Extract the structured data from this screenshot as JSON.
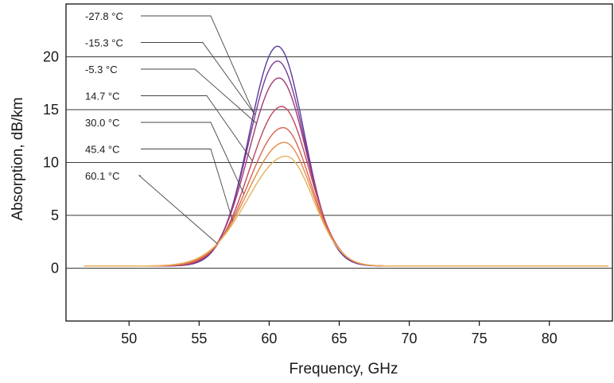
{
  "chart_data": {
    "type": "line",
    "title": "",
    "xlabel": "Frequency, GHz",
    "ylabel": "Absorption, dB/km",
    "xlim": [
      45.5,
      84.5
    ],
    "ylim": [
      -5,
      25
    ],
    "xticks": [
      50,
      55,
      60,
      65,
      70,
      75,
      80
    ],
    "yticks": [
      0,
      5,
      10,
      15,
      20
    ],
    "grid": "horizontal",
    "legend": "inline labels with leader lines, top-left",
    "series": [
      {
        "name": "-27.8 °C",
        "color": "#5a3a9c",
        "peak": 21.0,
        "peak_x": 60.6,
        "left_sigma": 2.0,
        "right_sigma": 1.9
      },
      {
        "name": "-15.3 °C",
        "color": "#7c3a94",
        "peak": 19.6,
        "peak_x": 60.6,
        "left_sigma": 2.05,
        "right_sigma": 1.95
      },
      {
        "name": "-5.3 °C",
        "color": "#a03a78",
        "peak": 18.0,
        "peak_x": 60.7,
        "left_sigma": 2.15,
        "right_sigma": 1.95
      },
      {
        "name": "14.7 °C",
        "color": "#c0455e",
        "peak": 15.3,
        "peak_x": 60.9,
        "left_sigma": 2.3,
        "right_sigma": 1.95
      },
      {
        "name": "30.0 °C",
        "color": "#d8644c",
        "peak": 13.3,
        "peak_x": 61.0,
        "left_sigma": 2.45,
        "right_sigma": 1.95
      },
      {
        "name": "45.4 °C",
        "color": "#e28a48",
        "peak": 11.9,
        "peak_x": 61.1,
        "left_sigma": 2.6,
        "right_sigma": 1.95
      },
      {
        "name": "60.1 °C",
        "color": "#e8b05a",
        "peak": 10.6,
        "peak_x": 61.2,
        "left_sigma": 2.75,
        "right_sigma": 1.95
      }
    ],
    "baseline": 0.2
  }
}
